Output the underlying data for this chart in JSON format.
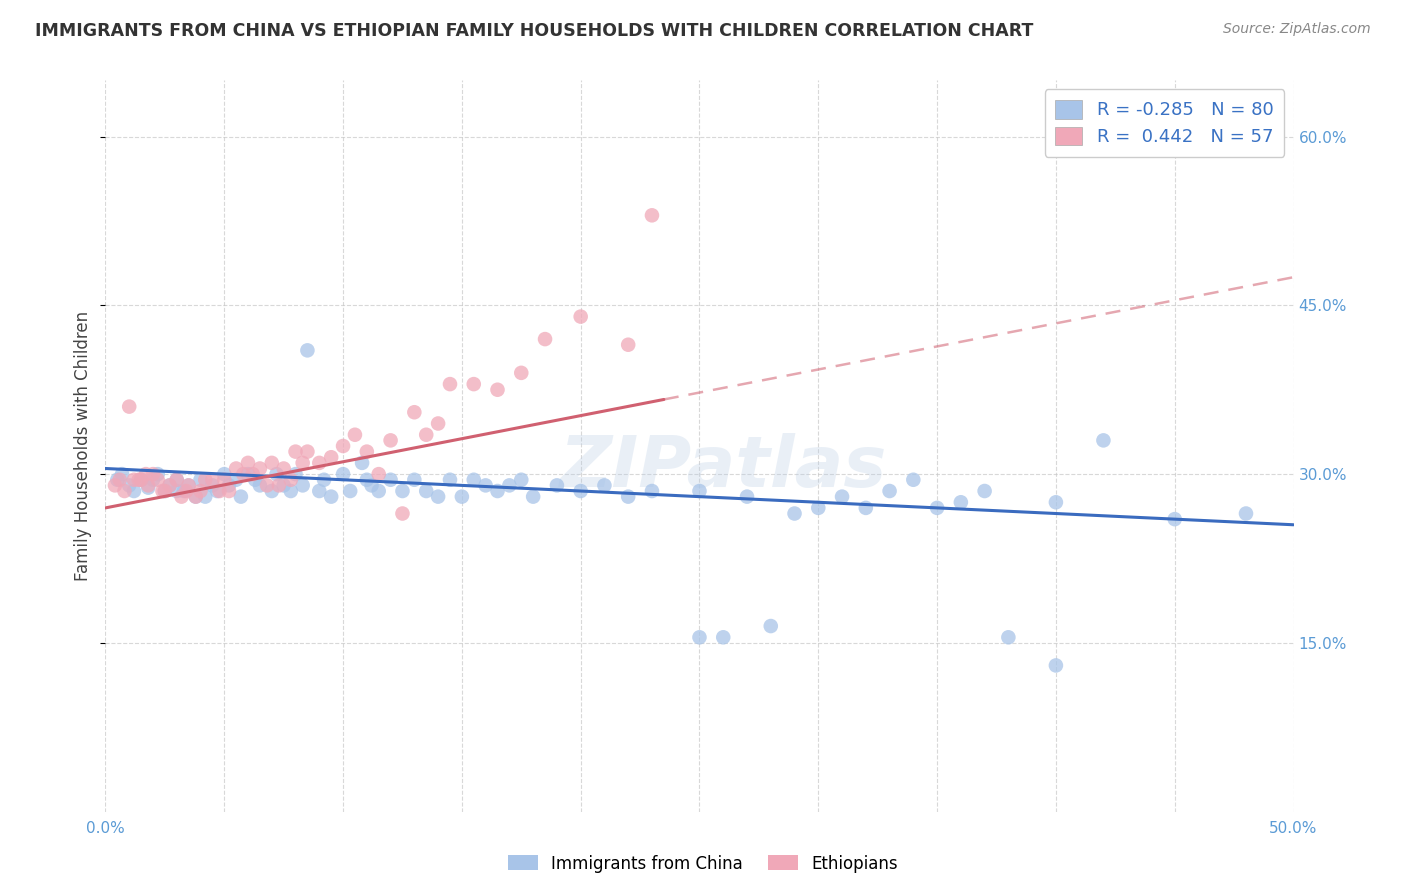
{
  "title": "IMMIGRANTS FROM CHINA VS ETHIOPIAN FAMILY HOUSEHOLDS WITH CHILDREN CORRELATION CHART",
  "source": "Source: ZipAtlas.com",
  "ylabel": "Family Households with Children",
  "xlim": [
    0.0,
    0.5
  ],
  "ylim": [
    0.0,
    0.65
  ],
  "x_ticks": [
    0.0,
    0.05,
    0.1,
    0.15,
    0.2,
    0.25,
    0.3,
    0.35,
    0.4,
    0.45,
    0.5
  ],
  "y_ticks_right": [
    0.15,
    0.3,
    0.45,
    0.6
  ],
  "y_tick_labels_right": [
    "15.0%",
    "30.0%",
    "45.0%",
    "60.0%"
  ],
  "legend_label_china": "Immigrants from China",
  "legend_label_ethiopian": "Ethiopians",
  "color_china": "#a8c4e8",
  "color_ethiopian": "#f0a8b8",
  "trendline_china_color": "#3a6bbf",
  "trendline_ethiopian_color": "#d06070",
  "trendline_china_x0": 0.0,
  "trendline_china_y0": 0.305,
  "trendline_china_x1": 0.5,
  "trendline_china_y1": 0.255,
  "trendline_eth_x0": 0.0,
  "trendline_eth_y0": 0.27,
  "trendline_eth_x1": 0.5,
  "trendline_eth_y1": 0.475,
  "trendline_eth_solid_end": 0.235,
  "background_color": "#ffffff",
  "grid_color": "#c8c8c8",
  "watermark": "ZIPatlas",
  "china_x": [
    0.005,
    0.007,
    0.01,
    0.012,
    0.015,
    0.018,
    0.02,
    0.022,
    0.025,
    0.027,
    0.03,
    0.03,
    0.033,
    0.035,
    0.038,
    0.04,
    0.042,
    0.045,
    0.047,
    0.05,
    0.052,
    0.055,
    0.057,
    0.06,
    0.063,
    0.065,
    0.07,
    0.072,
    0.075,
    0.078,
    0.08,
    0.083,
    0.085,
    0.09,
    0.092,
    0.095,
    0.1,
    0.103,
    0.108,
    0.11,
    0.112,
    0.115,
    0.12,
    0.125,
    0.13,
    0.135,
    0.14,
    0.145,
    0.15,
    0.155,
    0.16,
    0.165,
    0.17,
    0.175,
    0.18,
    0.19,
    0.2,
    0.21,
    0.22,
    0.23,
    0.25,
    0.27,
    0.29,
    0.31,
    0.33,
    0.35,
    0.37,
    0.4,
    0.42,
    0.45,
    0.25,
    0.26,
    0.28,
    0.3,
    0.32,
    0.34,
    0.36,
    0.38,
    0.4,
    0.48
  ],
  "china_y": [
    0.295,
    0.3,
    0.29,
    0.285,
    0.295,
    0.288,
    0.295,
    0.3,
    0.285,
    0.29,
    0.295,
    0.285,
    0.285,
    0.29,
    0.28,
    0.295,
    0.28,
    0.29,
    0.285,
    0.3,
    0.29,
    0.295,
    0.28,
    0.3,
    0.295,
    0.29,
    0.285,
    0.3,
    0.29,
    0.285,
    0.3,
    0.29,
    0.41,
    0.285,
    0.295,
    0.28,
    0.3,
    0.285,
    0.31,
    0.295,
    0.29,
    0.285,
    0.295,
    0.285,
    0.295,
    0.285,
    0.28,
    0.295,
    0.28,
    0.295,
    0.29,
    0.285,
    0.29,
    0.295,
    0.28,
    0.29,
    0.285,
    0.29,
    0.28,
    0.285,
    0.285,
    0.28,
    0.265,
    0.28,
    0.285,
    0.27,
    0.285,
    0.275,
    0.33,
    0.26,
    0.155,
    0.155,
    0.165,
    0.27,
    0.27,
    0.295,
    0.275,
    0.155,
    0.13,
    0.265
  ],
  "ethiopian_x": [
    0.004,
    0.006,
    0.008,
    0.01,
    0.012,
    0.014,
    0.015,
    0.017,
    0.018,
    0.02,
    0.022,
    0.024,
    0.025,
    0.027,
    0.03,
    0.032,
    0.034,
    0.035,
    0.038,
    0.04,
    0.042,
    0.045,
    0.048,
    0.05,
    0.052,
    0.055,
    0.058,
    0.06,
    0.062,
    0.065,
    0.068,
    0.07,
    0.073,
    0.075,
    0.078,
    0.08,
    0.083,
    0.085,
    0.09,
    0.095,
    0.1,
    0.105,
    0.11,
    0.115,
    0.12,
    0.125,
    0.13,
    0.135,
    0.14,
    0.145,
    0.155,
    0.165,
    0.175,
    0.185,
    0.2,
    0.22,
    0.23
  ],
  "ethiopian_y": [
    0.29,
    0.295,
    0.285,
    0.36,
    0.295,
    0.295,
    0.295,
    0.3,
    0.29,
    0.3,
    0.295,
    0.285,
    0.285,
    0.29,
    0.295,
    0.28,
    0.285,
    0.29,
    0.28,
    0.285,
    0.295,
    0.295,
    0.285,
    0.295,
    0.285,
    0.305,
    0.3,
    0.31,
    0.3,
    0.305,
    0.29,
    0.31,
    0.29,
    0.305,
    0.295,
    0.32,
    0.31,
    0.32,
    0.31,
    0.315,
    0.325,
    0.335,
    0.32,
    0.3,
    0.33,
    0.265,
    0.355,
    0.335,
    0.345,
    0.38,
    0.38,
    0.375,
    0.39,
    0.42,
    0.44,
    0.415,
    0.53
  ]
}
